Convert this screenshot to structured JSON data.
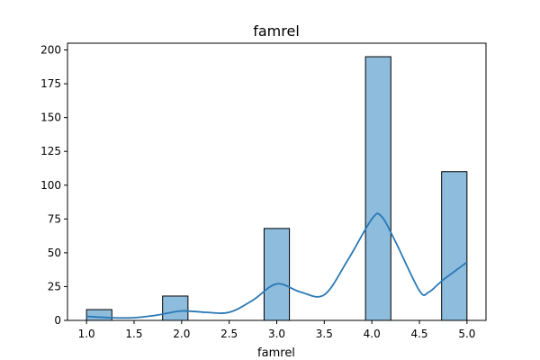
{
  "chart_data": {
    "type": "bar",
    "title": "famrel",
    "xlabel": "famrel",
    "ylabel": "",
    "xlim": [
      0.8,
      5.2
    ],
    "ylim": [
      0,
      205
    ],
    "x_ticks": [
      1.0,
      1.5,
      2.0,
      2.5,
      3.0,
      3.5,
      4.0,
      4.5,
      5.0
    ],
    "x_tick_labels": [
      "1.0",
      "1.5",
      "2.0",
      "2.5",
      "3.0",
      "3.5",
      "4.0",
      "4.5",
      "5.0"
    ],
    "y_ticks": [
      0,
      25,
      50,
      75,
      100,
      125,
      150,
      175,
      200
    ],
    "y_tick_labels": [
      "0",
      "25",
      "50",
      "75",
      "100",
      "125",
      "150",
      "175",
      "200"
    ],
    "bars": [
      {
        "x0": 1.0,
        "x1": 1.2667,
        "value": 8
      },
      {
        "x0": 1.8,
        "x1": 2.0667,
        "value": 18
      },
      {
        "x0": 2.8667,
        "x1": 3.1333,
        "value": 68
      },
      {
        "x0": 3.9333,
        "x1": 4.2,
        "value": 195
      },
      {
        "x0": 4.7333,
        "x1": 5.0,
        "value": 110
      }
    ],
    "kde": {
      "x": [
        1.0,
        1.25,
        1.5,
        1.75,
        2.0,
        2.25,
        2.5,
        2.75,
        3.0,
        3.25,
        3.5,
        3.75,
        4.0,
        4.1,
        4.25,
        4.5,
        4.6,
        4.75,
        5.0
      ],
      "y": [
        3,
        2,
        2,
        4,
        7,
        6,
        6,
        15,
        27,
        21,
        19,
        45,
        75,
        77,
        58,
        22,
        21,
        30,
        43
      ]
    },
    "grid": false,
    "colors": {
      "bar_fill": "#8ebcdd",
      "bar_edge": "#000000",
      "kde_line": "#2a78b5",
      "axis": "#000000"
    }
  }
}
